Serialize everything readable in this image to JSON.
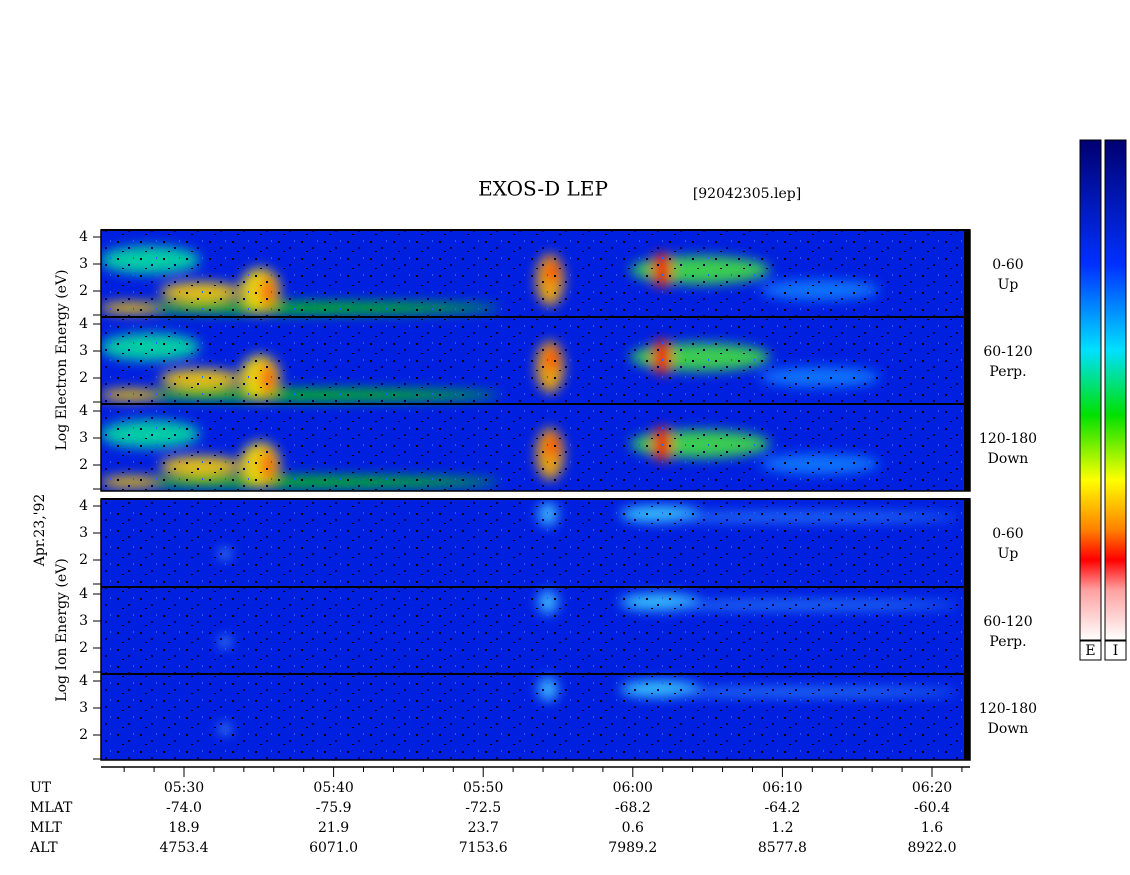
{
  "header": {
    "title": "EXOS-D LEP",
    "file": "[92042305.lep]"
  },
  "date": "Apr.23,'92",
  "electron": {
    "label": "Log  Electron  Energy (eV)",
    "panels": [
      {
        "angle": "0-60",
        "direction": "Up"
      },
      {
        "angle": "60-120",
        "direction": "Perp."
      },
      {
        "angle": "120-180",
        "direction": "Down"
      }
    ]
  },
  "ion": {
    "label": "Log  Ion  Energy (eV)",
    "panels": [
      {
        "angle": "0-60",
        "direction": "Up"
      },
      {
        "angle": "60-120",
        "direction": "Perp."
      },
      {
        "angle": "120-180",
        "direction": "Down"
      }
    ]
  },
  "energy_ticks": [
    "4",
    "3",
    "2"
  ],
  "rows": [
    {
      "label": "UT",
      "values": [
        "05:30",
        "05:40",
        "05:50",
        "06:00",
        "06:10",
        "06:20"
      ]
    },
    {
      "label": "MLAT",
      "values": [
        "-74.0",
        "-75.9",
        "-72.5",
        "-68.2",
        "-64.2",
        "-60.4"
      ]
    },
    {
      "label": "MLT",
      "values": [
        "18.9",
        "21.9",
        "23.7",
        "0.6",
        "1.2",
        "1.6"
      ]
    },
    {
      "label": "ALT",
      "values": [
        "4753.4",
        "6071.0",
        "7153.6",
        "7989.2",
        "8577.8",
        "8922.0"
      ]
    }
  ],
  "colorbar": {
    "labels": [
      "E",
      "I"
    ]
  }
}
